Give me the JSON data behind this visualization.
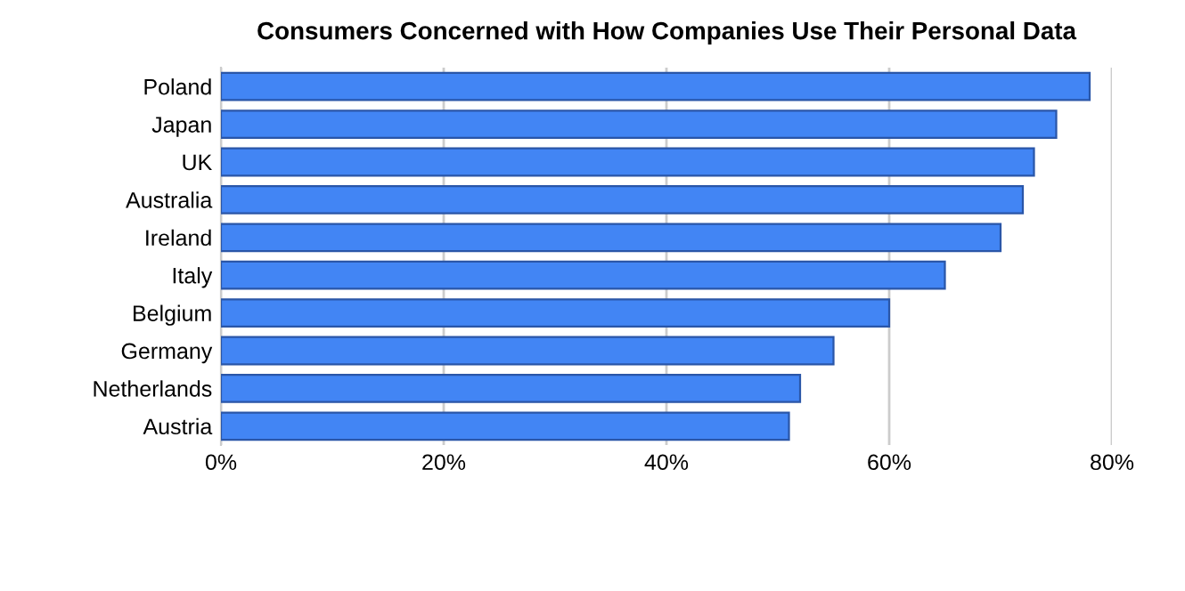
{
  "chart_data": {
    "type": "bar",
    "orientation": "horizontal",
    "title": "Consumers Concerned with How Companies Use Their Personal Data",
    "categories": [
      "Poland",
      "Japan",
      "UK",
      "Australia",
      "Ireland",
      "Italy",
      "Belgium",
      "Germany",
      "Netherlands",
      "Austria"
    ],
    "values": [
      78,
      75,
      73,
      72,
      70,
      65,
      60,
      55,
      52,
      51
    ],
    "color": "#4285f4",
    "xlim": [
      0,
      80
    ],
    "xticks": [
      {
        "value": 0,
        "label": "0%"
      },
      {
        "value": 20,
        "label": "20%"
      },
      {
        "value": 40,
        "label": "40%"
      },
      {
        "value": 60,
        "label": "60%"
      },
      {
        "value": 80,
        "label": "80%"
      }
    ],
    "grid": "x",
    "legend": false
  }
}
